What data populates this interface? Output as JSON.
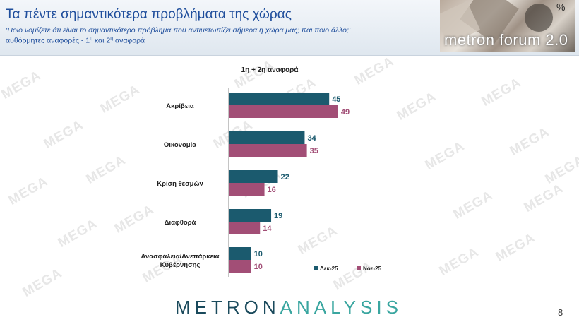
{
  "header": {
    "title": "Τα πέντε σημαντικότερα προβλήματα της χώρας",
    "question": "‘Ποιο νομίζετε ότι είναι το σημαντικότερο πρόβλημα που αντιμετωπίζει σήμερα η χώρα μας; Και ποιο άλλο;’",
    "subtitle_prefix": "αυθόρμητες αναφορές - 1",
    "subtitle_sup1": "η",
    "subtitle_mid": " και 2",
    "subtitle_sup2": "η",
    "subtitle_suffix": " αναφορά",
    "logo_text": "metron forum 2.0",
    "unit": "%"
  },
  "watermark_text": "MEGA",
  "chart_data": {
    "type": "bar",
    "orientation": "horizontal",
    "title": "1η + 2η αναφορά",
    "categories": [
      "Ακρίβεια",
      "Οικονομία",
      "Κρίση θεσμών",
      "Διαφθορά",
      [
        "Ανασφάλεια/Ανεπάρκεια",
        "Κυβέρνησης"
      ]
    ],
    "series": [
      {
        "name": "Δεκ-25",
        "values": [
          45,
          34,
          22,
          19,
          10
        ],
        "color": "#1b5a6e"
      },
      {
        "name": "Νοε-25",
        "values": [
          49,
          35,
          16,
          14,
          10
        ],
        "color": "#a24e76"
      }
    ],
    "xlim": [
      0,
      100
    ],
    "legend": "bottom-right",
    "grid": false
  },
  "footer": {
    "brand_part1": "METRON",
    "brand_part2": "ANALYSIS",
    "page_number": "8"
  }
}
